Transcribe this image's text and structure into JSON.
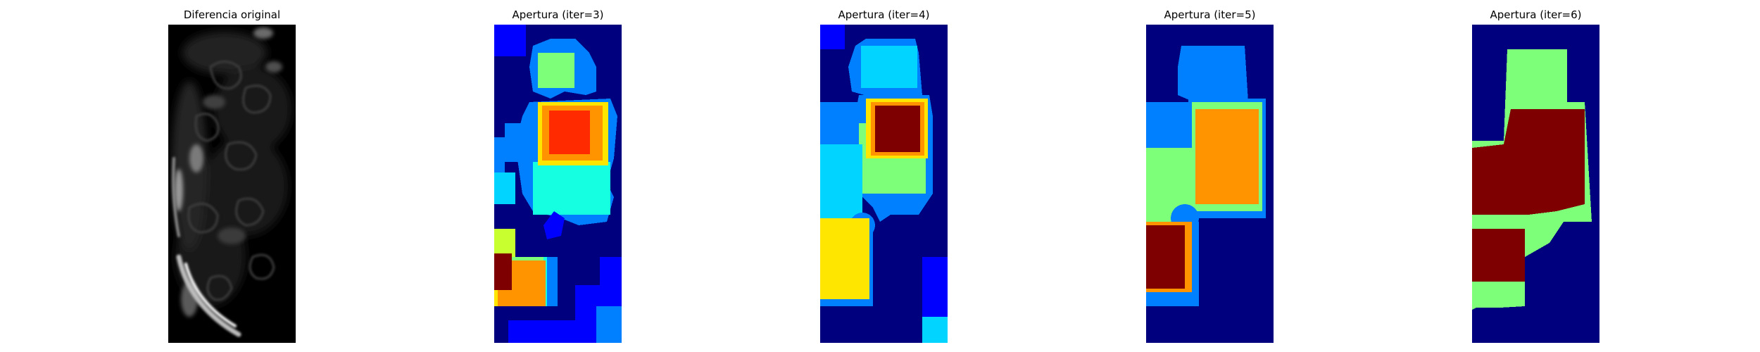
{
  "figure": {
    "panels": [
      {
        "title": "Diferencia original",
        "image": "grayscale-difference-image",
        "colormap": "gray"
      },
      {
        "title": "Apertura (iter=3)",
        "image": "label-map-iter-3",
        "colormap": "jet"
      },
      {
        "title": "Apertura (iter=4)",
        "image": "label-map-iter-4",
        "colormap": "jet"
      },
      {
        "title": "Apertura (iter=5)",
        "image": "label-map-iter-5",
        "colormap": "jet"
      },
      {
        "title": "Apertura (iter=6)",
        "image": "label-map-iter-6",
        "colormap": "jet"
      }
    ],
    "colors": {
      "jet_dark_blue": "#00007f",
      "jet_blue": "#0000ff",
      "jet_azure": "#007fff",
      "jet_cyan": "#00d4ff",
      "jet_aqua": "#15ffe1",
      "jet_green": "#7dff7a",
      "jet_yellow": "#ffe600",
      "jet_orange": "#ff9400",
      "jet_red": "#ff2a00",
      "jet_dark_red": "#7f0000"
    }
  }
}
